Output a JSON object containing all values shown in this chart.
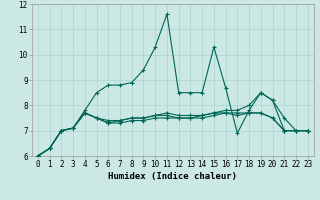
{
  "title": "",
  "xlabel": "Humidex (Indice chaleur)",
  "ylabel": "",
  "bg_color": "#cce8e4",
  "line_color": "#006655",
  "grid_color": "#aad4cc",
  "xlim": [
    -0.5,
    23.5
  ],
  "ylim": [
    6,
    12
  ],
  "xticks": [
    0,
    1,
    2,
    3,
    4,
    5,
    6,
    7,
    8,
    9,
    10,
    11,
    12,
    13,
    14,
    15,
    16,
    17,
    18,
    19,
    20,
    21,
    22,
    23
  ],
  "yticks": [
    6,
    7,
    8,
    9,
    10,
    11,
    12
  ],
  "lines": [
    [
      6.0,
      6.3,
      7.0,
      7.1,
      7.8,
      8.5,
      8.8,
      8.8,
      8.9,
      9.4,
      10.3,
      11.6,
      8.5,
      8.5,
      8.5,
      10.3,
      8.7,
      6.9,
      7.8,
      8.5,
      8.2,
      7.0,
      7.0,
      7.0
    ],
    [
      6.0,
      6.3,
      7.0,
      7.1,
      7.7,
      7.5,
      7.3,
      7.4,
      7.5,
      7.5,
      7.6,
      7.6,
      7.5,
      7.5,
      7.6,
      7.7,
      7.7,
      7.7,
      7.7,
      7.7,
      7.5,
      7.0,
      7.0,
      7.0
    ],
    [
      6.0,
      6.3,
      7.0,
      7.1,
      7.7,
      7.5,
      7.3,
      7.3,
      7.4,
      7.4,
      7.5,
      7.5,
      7.5,
      7.5,
      7.5,
      7.6,
      7.7,
      7.6,
      7.7,
      7.7,
      7.5,
      7.0,
      7.0,
      7.0
    ],
    [
      6.0,
      6.3,
      7.0,
      7.1,
      7.7,
      7.5,
      7.4,
      7.4,
      7.5,
      7.5,
      7.6,
      7.7,
      7.6,
      7.6,
      7.6,
      7.7,
      7.8,
      7.8,
      8.0,
      8.5,
      8.2,
      7.5,
      7.0,
      7.0
    ]
  ]
}
